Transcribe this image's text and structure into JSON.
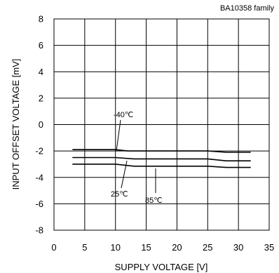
{
  "chart_data": {
    "type": "line",
    "family_label": "BA10358  family",
    "xlabel": "SUPPLY VOLTAGE [V]",
    "ylabel": "INPUT OFFSET VOLTAGE [mV]",
    "xlim": [
      0,
      35
    ],
    "ylim": [
      -8,
      8
    ],
    "xticks": [
      "0",
      "5",
      "10",
      "15",
      "20",
      "25",
      "30",
      "35"
    ],
    "yticks": [
      "8",
      "6",
      "4",
      "2",
      "0",
      "-2",
      "-4",
      "-6",
      "-8"
    ],
    "grid": true,
    "series": [
      {
        "name": "-40℃",
        "x": [
          3,
          10,
          12,
          25,
          28,
          32
        ],
        "y": [
          -1.9,
          -1.9,
          -2.0,
          -2.0,
          -2.1,
          -2.1
        ]
      },
      {
        "name": "25℃",
        "x": [
          3,
          10,
          13,
          25,
          28,
          32
        ],
        "y": [
          -2.5,
          -2.5,
          -2.6,
          -2.6,
          -2.75,
          -2.75
        ]
      },
      {
        "name": "85℃",
        "x": [
          3,
          10,
          13,
          25,
          28,
          32
        ],
        "y": [
          -3.0,
          -3.0,
          -3.15,
          -3.15,
          -3.25,
          -3.25
        ]
      }
    ],
    "annotations": [
      {
        "text": "-40℃",
        "series": 0
      },
      {
        "text": "25℃",
        "series": 1
      },
      {
        "text": "85℃",
        "series": 2
      }
    ]
  }
}
